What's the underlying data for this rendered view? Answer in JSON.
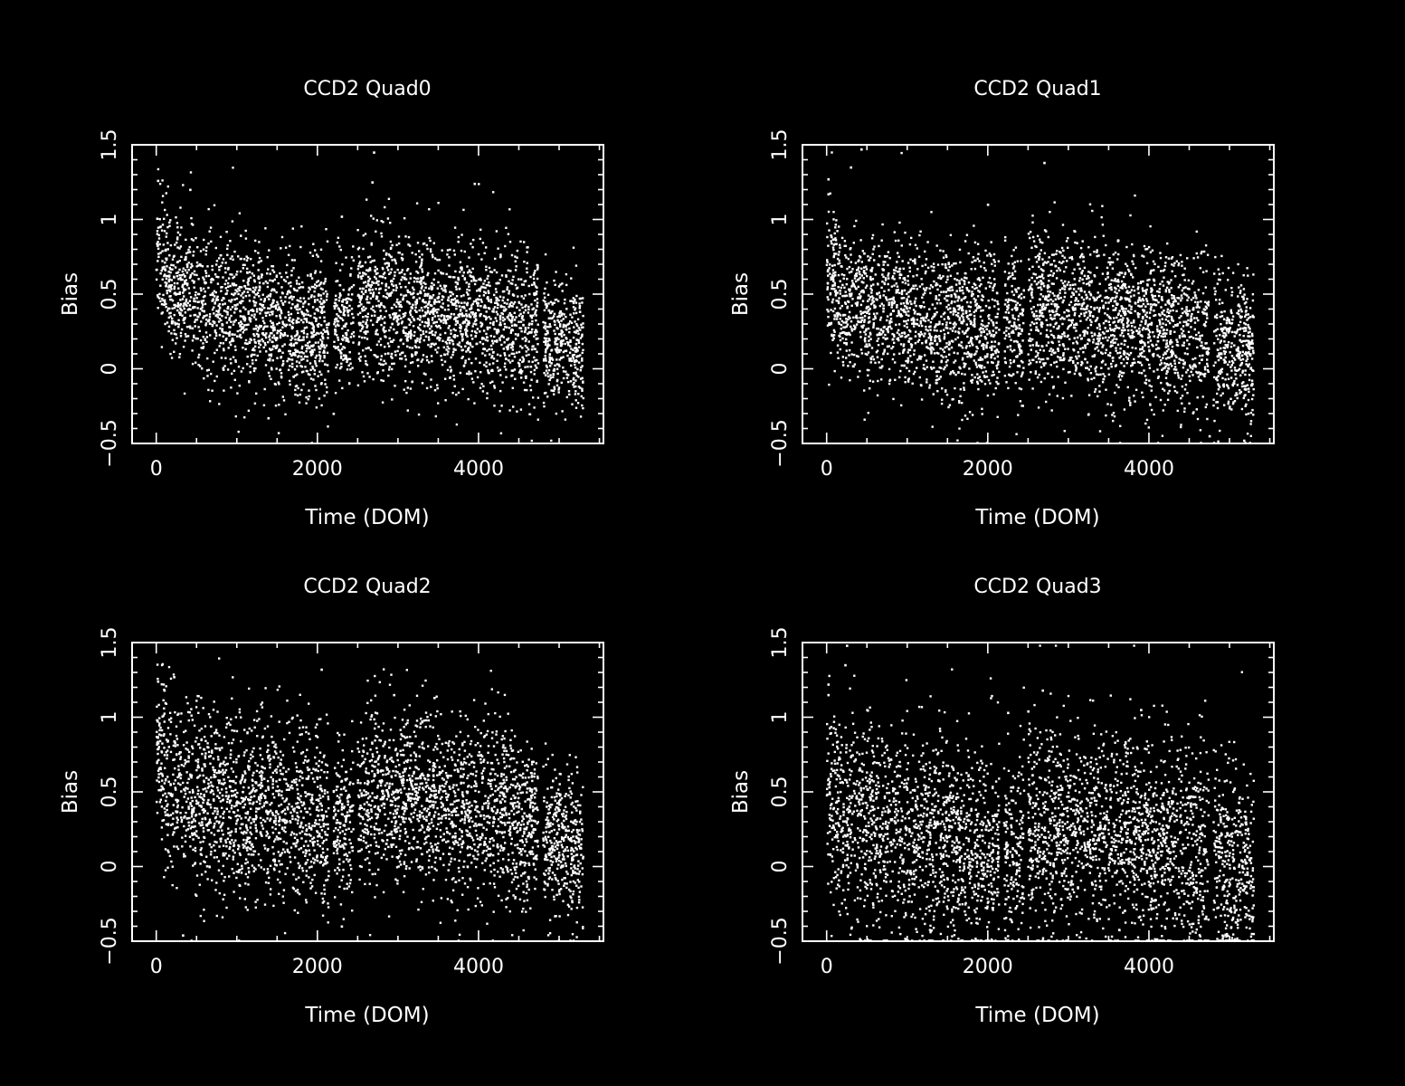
{
  "colors": {
    "background": "#000000",
    "foreground": "#ffffff"
  },
  "chart_data": [
    {
      "type": "scatter",
      "title": "CCD2 Quad0",
      "xlabel": "Time (DOM)",
      "ylabel": "Bias",
      "xlim": [
        -300,
        5550
      ],
      "ylim": [
        -0.5,
        1.5
      ],
      "x_ticks": [
        "0",
        "2000",
        "4000"
      ],
      "y_ticks": [
        "−0.5",
        "0",
        "0.5",
        "1",
        "1.5"
      ],
      "grid": false,
      "legend": "none",
      "segments": [
        {
          "x_start": 0,
          "x_end": 2140,
          "y_start_mean": 0.55,
          "y_end_mean": 0.22,
          "spread": 0.24
        },
        {
          "x_start": 2200,
          "x_end": 2450,
          "y_start_mean": 0.3,
          "y_end_mean": 0.3,
          "spread": 0.22
        },
        {
          "x_start": 2500,
          "x_end": 4740,
          "y_start_mean": 0.45,
          "y_end_mean": 0.3,
          "spread": 0.25
        },
        {
          "x_start": 4800,
          "x_end": 5300,
          "y_start_mean": 0.22,
          "y_end_mean": 0.15,
          "spread": 0.22
        }
      ],
      "outliers": [
        {
          "x": 20,
          "y": 1.26
        },
        {
          "x": 420,
          "y": 1.2
        },
        {
          "x": 2700,
          "y": 1.45
        },
        {
          "x": 2680,
          "y": 1.25
        },
        {
          "x": 3950,
          "y": 1.24
        },
        {
          "x": 2300,
          "y": 1.02
        },
        {
          "x": 1390,
          "y": -0.33
        },
        {
          "x": 2200,
          "y": -0.3
        }
      ]
    },
    {
      "type": "scatter",
      "title": "CCD2 Quad1",
      "xlabel": "Time (DOM)",
      "ylabel": "Bias",
      "xlim": [
        -300,
        5550
      ],
      "ylim": [
        -0.5,
        1.5
      ],
      "x_ticks": [
        "0",
        "2000",
        "4000"
      ],
      "y_ticks": [
        "−0.5",
        "0",
        "0.5",
        "1",
        "1.5"
      ],
      "grid": false,
      "legend": "none",
      "segments": [
        {
          "x_start": 0,
          "x_end": 2140,
          "y_start_mean": 0.45,
          "y_end_mean": 0.25,
          "spread": 0.26
        },
        {
          "x_start": 2200,
          "x_end": 2450,
          "y_start_mean": 0.3,
          "y_end_mean": 0.3,
          "spread": 0.25
        },
        {
          "x_start": 2500,
          "x_end": 4740,
          "y_start_mean": 0.4,
          "y_end_mean": 0.22,
          "spread": 0.27
        },
        {
          "x_start": 4800,
          "x_end": 5300,
          "y_start_mean": 0.18,
          "y_end_mean": 0.1,
          "spread": 0.25
        }
      ],
      "outliers": [
        {
          "x": 20,
          "y": 1.27
        },
        {
          "x": 20,
          "y": 1.17
        },
        {
          "x": 300,
          "y": 1.35
        },
        {
          "x": 430,
          "y": 1.47
        },
        {
          "x": 2700,
          "y": 1.38
        },
        {
          "x": 2000,
          "y": 1.1
        },
        {
          "x": 4750,
          "y": -0.45
        },
        {
          "x": 5180,
          "y": -0.48
        }
      ]
    },
    {
      "type": "scatter",
      "title": "CCD2 Quad2",
      "xlabel": "Time (DOM)",
      "ylabel": "Bias",
      "xlim": [
        -300,
        5550
      ],
      "ylim": [
        -0.5,
        1.5
      ],
      "x_ticks": [
        "0",
        "2000",
        "4000"
      ],
      "y_ticks": [
        "−0.5",
        "0",
        "0.5",
        "1",
        "1.5"
      ],
      "grid": false,
      "legend": "none",
      "segments": [
        {
          "x_start": 0,
          "x_end": 2140,
          "y_start_mean": 0.55,
          "y_end_mean": 0.3,
          "spread": 0.3
        },
        {
          "x_start": 2200,
          "x_end": 2450,
          "y_start_mean": 0.3,
          "y_end_mean": 0.3,
          "spread": 0.28
        },
        {
          "x_start": 2500,
          "x_end": 4740,
          "y_start_mean": 0.5,
          "y_end_mean": 0.3,
          "spread": 0.3
        },
        {
          "x_start": 4800,
          "x_end": 5300,
          "y_start_mean": 0.2,
          "y_end_mean": 0.1,
          "spread": 0.25
        }
      ],
      "outliers": [
        {
          "x": 20,
          "y": 1.24
        },
        {
          "x": 220,
          "y": 1.27
        },
        {
          "x": 2050,
          "y": 1.32
        },
        {
          "x": 100,
          "y": 1.18
        },
        {
          "x": 2300,
          "y": -0.4
        },
        {
          "x": 330,
          "y": -0.46
        },
        {
          "x": 3450,
          "y": 1.13
        },
        {
          "x": 2950,
          "y": 1.15
        }
      ]
    },
    {
      "type": "scatter",
      "title": "CCD2 Quad3",
      "xlabel": "Time (DOM)",
      "ylabel": "Bias",
      "xlim": [
        -300,
        5550
      ],
      "ylim": [
        -0.5,
        1.5
      ],
      "x_ticks": [
        "0",
        "2000",
        "4000"
      ],
      "y_ticks": [
        "−0.5",
        "0",
        "0.5",
        "1",
        "1.5"
      ],
      "grid": false,
      "legend": "none",
      "segments": [
        {
          "x_start": 0,
          "x_end": 2140,
          "y_start_mean": 0.3,
          "y_end_mean": 0.1,
          "spread": 0.35
        },
        {
          "x_start": 2200,
          "x_end": 2450,
          "y_start_mean": 0.1,
          "y_end_mean": 0.1,
          "spread": 0.35
        },
        {
          "x_start": 2500,
          "x_end": 4740,
          "y_start_mean": 0.3,
          "y_end_mean": 0.1,
          "spread": 0.35
        },
        {
          "x_start": 4800,
          "x_end": 5300,
          "y_start_mean": 0.05,
          "y_end_mean": -0.1,
          "spread": 0.35
        }
      ],
      "outliers": [
        {
          "x": 20,
          "y": 1.22
        },
        {
          "x": 20,
          "y": 1.15
        },
        {
          "x": 230,
          "y": 1.35
        },
        {
          "x": 250,
          "y": 1.48
        },
        {
          "x": 2500,
          "y": 1.04
        },
        {
          "x": 2680,
          "y": 1.18
        },
        {
          "x": 3900,
          "y": 1.05
        },
        {
          "x": 2250,
          "y": 1.03
        }
      ]
    }
  ]
}
